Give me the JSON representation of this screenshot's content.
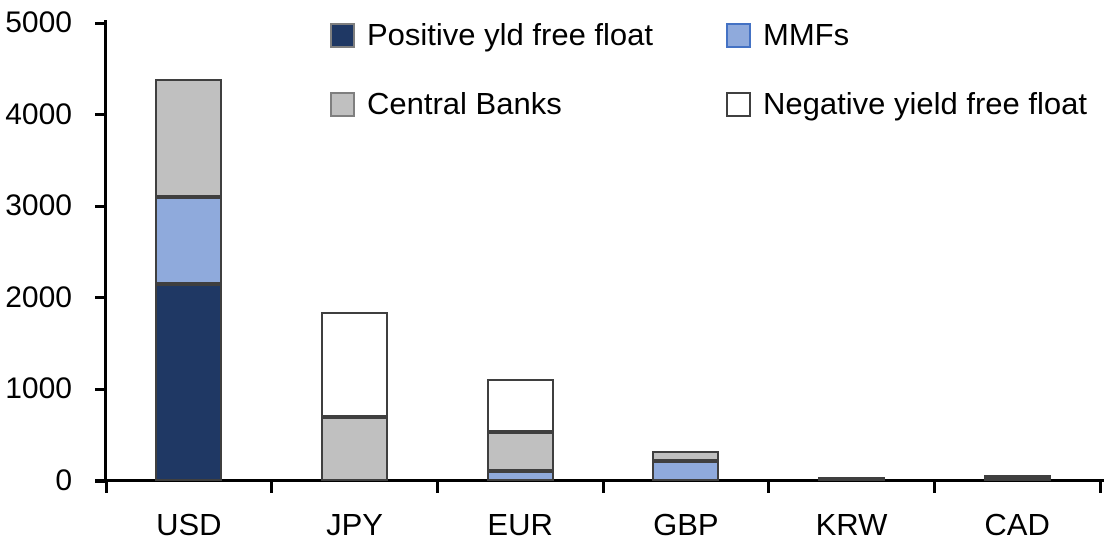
{
  "chart_data": {
    "type": "bar",
    "stacked": true,
    "title": "",
    "xlabel": "",
    "ylabel": "",
    "categories": [
      "USD",
      "JPY",
      "EUR",
      "GBP",
      "KRW",
      "CAD"
    ],
    "series": [
      {
        "name": "Positive yld free float",
        "color": "#1F3864",
        "swatch_border": "#7f7f7f",
        "values": [
          2150,
          0,
          0,
          0,
          45,
          45
        ]
      },
      {
        "name": "MMFs",
        "color": "#8FAADC",
        "swatch_border": "#4472C4",
        "values": [
          950,
          0,
          110,
          215,
          0,
          0
        ]
      },
      {
        "name": "Central Banks",
        "color": "#C0C0C0",
        "swatch_border": "#7f7f7f",
        "values": [
          1290,
          700,
          430,
          115,
          0,
          25
        ]
      },
      {
        "name": "Negative yield free float",
        "color": "#FFFFFF",
        "swatch_border": "#404040",
        "values": [
          0,
          1150,
          570,
          0,
          0,
          0
        ]
      }
    ],
    "stack_order_bottom_to_top": [
      "Positive yld free float",
      "MMFs",
      "Central Banks",
      "Negative yield free float"
    ],
    "totals": {
      "USD": 4390,
      "JPY": 1850,
      "EUR": 1110,
      "GBP": 330,
      "KRW": 45,
      "CAD": 70
    },
    "ylim": [
      0,
      5000
    ],
    "y_ticks": [
      "0",
      "1000",
      "2000",
      "3000",
      "4000",
      "5000"
    ],
    "grid": false,
    "legend_position": "top-two-rows",
    "axis_color": "#000000",
    "segment_border_color": "#3f3f3f",
    "background_color": "#ffffff"
  }
}
